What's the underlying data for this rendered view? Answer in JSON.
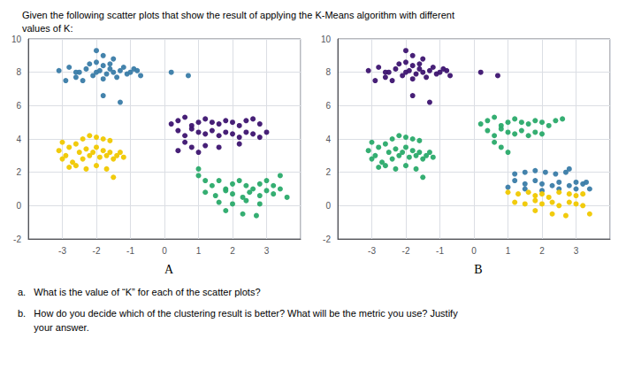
{
  "title": "Given the following scatter plots that show the result of applying the K-Means algorithm with different\nvalues of K:",
  "annotations": [
    "a.   What is the value of “K” for each of the scatter plots?",
    "b.   How do you decide which of the clustering result is better? What will be the metric you use? Justify\n      your answer."
  ],
  "chart_data": [
    {
      "type": "scatter",
      "subtitle": "A",
      "xlim": [
        -4,
        4
      ],
      "ylim": [
        -2,
        10
      ],
      "xticks": [
        -3,
        -2,
        -1,
        0,
        1,
        2,
        3
      ],
      "yticks": [
        -2,
        0,
        2,
        4,
        6,
        8,
        10
      ],
      "grid": true,
      "series": [
        {
          "color": "#3a7ca8",
          "values": [
            [
              -3.1,
              8.1
            ],
            [
              -2.9,
              7.5
            ],
            [
              -2.8,
              8.3
            ],
            [
              -2.6,
              7.7
            ],
            [
              -2.5,
              8.0
            ],
            [
              -2.4,
              7.5
            ],
            [
              -2.3,
              8.2
            ],
            [
              -2.2,
              8.5
            ],
            [
              -2.1,
              7.8
            ],
            [
              -2.0,
              8.0
            ],
            [
              -1.9,
              8.1
            ],
            [
              -1.8,
              7.6
            ],
            [
              -1.8,
              8.4
            ],
            [
              -1.7,
              7.9
            ],
            [
              -1.6,
              8.2
            ],
            [
              -1.5,
              8.0
            ],
            [
              -1.4,
              7.7
            ],
            [
              -1.3,
              8.1
            ],
            [
              -1.2,
              8.3
            ],
            [
              -1.1,
              7.9
            ],
            [
              -1.0,
              8.0
            ],
            [
              -0.9,
              8.2
            ],
            [
              -0.8,
              8.1
            ],
            [
              -0.7,
              7.8
            ],
            [
              -2.0,
              9.3
            ],
            [
              -1.8,
              9.0
            ],
            [
              -1.5,
              8.8
            ],
            [
              -2.6,
              8.0
            ],
            [
              -2.0,
              8.6
            ],
            [
              -1.6,
              8.5
            ],
            [
              0.2,
              8.0
            ],
            [
              0.7,
              7.8
            ],
            [
              -1.8,
              6.6
            ],
            [
              -1.3,
              6.2
            ]
          ]
        },
        {
          "color": "#3d1470",
          "values": [
            [
              0.2,
              4.9
            ],
            [
              0.4,
              5.1
            ],
            [
              0.6,
              5.3
            ],
            [
              0.8,
              4.8
            ],
            [
              1.0,
              5.0
            ],
            [
              1.2,
              5.2
            ],
            [
              1.4,
              5.0
            ],
            [
              1.6,
              4.9
            ],
            [
              1.8,
              5.1
            ],
            [
              2.0,
              5.0
            ],
            [
              2.2,
              4.8
            ],
            [
              2.4,
              5.1
            ],
            [
              2.6,
              5.2
            ],
            [
              2.8,
              4.9
            ],
            [
              0.4,
              4.5
            ],
            [
              0.6,
              4.2
            ],
            [
              0.8,
              4.6
            ],
            [
              1.0,
              4.4
            ],
            [
              1.2,
              4.3
            ],
            [
              1.4,
              4.5
            ],
            [
              1.6,
              4.2
            ],
            [
              1.8,
              4.4
            ],
            [
              2.0,
              4.3
            ],
            [
              2.2,
              4.1
            ],
            [
              2.4,
              4.4
            ],
            [
              2.6,
              4.3
            ],
            [
              2.8,
              4.1
            ],
            [
              3.0,
              4.4
            ],
            [
              0.6,
              3.8
            ],
            [
              0.8,
              3.5
            ],
            [
              1.2,
              3.6
            ],
            [
              1.6,
              3.5
            ],
            [
              2.2,
              3.7
            ],
            [
              1.0,
              3.2
            ],
            [
              0.4,
              3.3
            ]
          ]
        },
        {
          "color": "#f0c800",
          "values": [
            [
              -3.1,
              3.3
            ],
            [
              -3.0,
              2.8
            ],
            [
              -2.9,
              3.0
            ],
            [
              -2.8,
              3.5
            ],
            [
              -2.7,
              2.6
            ],
            [
              -2.6,
              3.7
            ],
            [
              -2.5,
              3.2
            ],
            [
              -2.4,
              2.8
            ],
            [
              -2.3,
              3.4
            ],
            [
              -2.2,
              3.0
            ],
            [
              -2.1,
              3.2
            ],
            [
              -2.0,
              3.5
            ],
            [
              -1.9,
              2.9
            ],
            [
              -1.8,
              3.3
            ],
            [
              -1.7,
              3.0
            ],
            [
              -1.6,
              3.2
            ],
            [
              -1.5,
              2.8
            ],
            [
              -1.4,
              3.0
            ],
            [
              -1.3,
              3.2
            ],
            [
              -1.2,
              2.9
            ],
            [
              -2.4,
              4.0
            ],
            [
              -2.2,
              4.2
            ],
            [
              -2.0,
              4.1
            ],
            [
              -1.8,
              4.0
            ],
            [
              -1.6,
              3.9
            ],
            [
              -2.6,
              2.4
            ],
            [
              -2.3,
              2.2
            ],
            [
              -2.0,
              2.4
            ],
            [
              -1.7,
              2.2
            ],
            [
              -3.0,
              3.8
            ],
            [
              -2.8,
              2.3
            ],
            [
              -1.5,
              1.7
            ]
          ]
        },
        {
          "color": "#2aaa6a",
          "values": [
            [
              1.0,
              1.8
            ],
            [
              1.2,
              1.5
            ],
            [
              1.4,
              1.2
            ],
            [
              1.6,
              1.5
            ],
            [
              1.8,
              1.0
            ],
            [
              2.0,
              1.3
            ],
            [
              2.2,
              1.5
            ],
            [
              2.4,
              1.2
            ],
            [
              2.6,
              1.0
            ],
            [
              2.8,
              1.3
            ],
            [
              3.0,
              1.5
            ],
            [
              3.2,
              1.2
            ],
            [
              3.4,
              1.0
            ],
            [
              1.2,
              0.8
            ],
            [
              1.5,
              0.6
            ],
            [
              1.8,
              0.9
            ],
            [
              2.0,
              0.7
            ],
            [
              2.3,
              0.5
            ],
            [
              2.5,
              0.8
            ],
            [
              2.8,
              0.6
            ],
            [
              3.0,
              0.9
            ],
            [
              3.2,
              0.7
            ],
            [
              1.6,
              0.2
            ],
            [
              2.0,
              0.1
            ],
            [
              2.4,
              0.3
            ],
            [
              2.8,
              0.1
            ],
            [
              1.8,
              -0.3
            ],
            [
              2.3,
              -0.5
            ],
            [
              2.7,
              -0.6
            ],
            [
              1.0,
              2.2
            ],
            [
              3.6,
              0.5
            ],
            [
              3.4,
              1.8
            ]
          ]
        }
      ]
    },
    {
      "type": "scatter",
      "subtitle": "B",
      "xlim": [
        -4,
        4
      ],
      "ylim": [
        -2,
        10
      ],
      "xticks": [
        -3,
        -2,
        -1,
        0,
        1,
        2,
        3
      ],
      "yticks": [
        -2,
        0,
        2,
        4,
        6,
        8,
        10
      ],
      "grid": true,
      "series": [
        {
          "color": "#3d1470",
          "values": [
            [
              -3.1,
              8.1
            ],
            [
              -2.9,
              7.5
            ],
            [
              -2.8,
              8.3
            ],
            [
              -2.6,
              7.7
            ],
            [
              -2.5,
              8.0
            ],
            [
              -2.4,
              7.5
            ],
            [
              -2.3,
              8.2
            ],
            [
              -2.2,
              8.5
            ],
            [
              -2.1,
              7.8
            ],
            [
              -2.0,
              8.0
            ],
            [
              -1.9,
              8.1
            ],
            [
              -1.8,
              7.6
            ],
            [
              -1.8,
              8.4
            ],
            [
              -1.7,
              7.9
            ],
            [
              -1.6,
              8.2
            ],
            [
              -1.5,
              8.0
            ],
            [
              -1.4,
              7.7
            ],
            [
              -1.3,
              8.1
            ],
            [
              -1.2,
              8.3
            ],
            [
              -1.1,
              7.9
            ],
            [
              -1.0,
              8.0
            ],
            [
              -0.9,
              8.2
            ],
            [
              -0.8,
              8.1
            ],
            [
              -0.7,
              7.8
            ],
            [
              -2.0,
              9.3
            ],
            [
              -1.8,
              9.0
            ],
            [
              -1.5,
              8.8
            ],
            [
              -2.6,
              8.0
            ],
            [
              -2.0,
              8.6
            ],
            [
              -1.6,
              8.5
            ],
            [
              0.2,
              8.0
            ],
            [
              0.7,
              7.8
            ],
            [
              -1.8,
              6.6
            ],
            [
              -1.3,
              6.2
            ]
          ]
        },
        {
          "color": "#2aaa6a",
          "values": [
            [
              -3.1,
              3.3
            ],
            [
              -3.0,
              2.8
            ],
            [
              -2.9,
              3.0
            ],
            [
              -2.8,
              3.5
            ],
            [
              -2.7,
              2.6
            ],
            [
              -2.6,
              3.7
            ],
            [
              -2.5,
              3.2
            ],
            [
              -2.4,
              2.8
            ],
            [
              -2.3,
              3.4
            ],
            [
              -2.2,
              3.0
            ],
            [
              -2.1,
              3.2
            ],
            [
              -2.0,
              3.5
            ],
            [
              -1.9,
              2.9
            ],
            [
              -1.8,
              3.3
            ],
            [
              -1.7,
              3.0
            ],
            [
              -1.6,
              3.2
            ],
            [
              -1.5,
              2.8
            ],
            [
              -1.4,
              3.0
            ],
            [
              -1.3,
              3.2
            ],
            [
              -1.2,
              2.9
            ],
            [
              -2.4,
              4.0
            ],
            [
              -2.2,
              4.2
            ],
            [
              -2.0,
              4.1
            ],
            [
              -1.8,
              4.0
            ],
            [
              -1.6,
              3.9
            ],
            [
              -2.6,
              2.4
            ],
            [
              -2.3,
              2.2
            ],
            [
              -2.0,
              2.4
            ],
            [
              -1.7,
              2.2
            ],
            [
              -3.0,
              3.8
            ],
            [
              -2.8,
              2.3
            ],
            [
              -1.5,
              1.7
            ],
            [
              0.2,
              4.9
            ],
            [
              0.4,
              5.1
            ],
            [
              0.6,
              5.3
            ],
            [
              0.8,
              4.8
            ],
            [
              1.0,
              5.0
            ],
            [
              1.2,
              5.2
            ],
            [
              1.4,
              5.0
            ],
            [
              1.6,
              4.9
            ],
            [
              1.8,
              5.1
            ],
            [
              2.0,
              5.0
            ],
            [
              2.2,
              4.8
            ],
            [
              2.4,
              5.1
            ],
            [
              2.6,
              5.2
            ],
            [
              0.4,
              4.5
            ],
            [
              0.6,
              4.2
            ],
            [
              0.8,
              4.6
            ],
            [
              1.0,
              4.4
            ],
            [
              1.2,
              4.3
            ],
            [
              1.4,
              4.5
            ],
            [
              1.6,
              4.2
            ],
            [
              1.8,
              4.4
            ],
            [
              2.0,
              4.3
            ],
            [
              0.6,
              3.8
            ],
            [
              0.8,
              3.5
            ],
            [
              1.0,
              3.2
            ]
          ]
        },
        {
          "color": "#3a7ca8",
          "values": [
            [
              1.2,
              1.9
            ],
            [
              1.5,
              2.0
            ],
            [
              1.8,
              2.1
            ],
            [
              2.1,
              2.0
            ],
            [
              2.4,
              1.9
            ],
            [
              2.7,
              2.0
            ],
            [
              2.8,
              2.2
            ],
            [
              1.2,
              1.5
            ],
            [
              1.5,
              1.3
            ],
            [
              1.8,
              1.5
            ],
            [
              2.0,
              1.3
            ],
            [
              2.3,
              1.2
            ],
            [
              2.5,
              1.4
            ],
            [
              2.8,
              1.2
            ],
            [
              3.0,
              1.4
            ],
            [
              3.2,
              1.3
            ],
            [
              1.0,
              1.1
            ],
            [
              1.5,
              1.0
            ],
            [
              2.0,
              0.9
            ],
            [
              2.5,
              1.0
            ],
            [
              3.0,
              1.0
            ],
            [
              3.3,
              1.4
            ],
            [
              3.4,
              1.0
            ]
          ]
        },
        {
          "color": "#f0c800",
          "values": [
            [
              1.0,
              0.8
            ],
            [
              1.3,
              0.7
            ],
            [
              1.6,
              0.8
            ],
            [
              1.8,
              0.6
            ],
            [
              2.0,
              0.7
            ],
            [
              2.2,
              0.5
            ],
            [
              2.5,
              0.8
            ],
            [
              2.8,
              0.7
            ],
            [
              3.0,
              0.6
            ],
            [
              3.2,
              0.7
            ],
            [
              1.2,
              0.2
            ],
            [
              1.5,
              0.1
            ],
            [
              1.8,
              0.3
            ],
            [
              2.0,
              0.1
            ],
            [
              2.3,
              0.2
            ],
            [
              2.5,
              0.0
            ],
            [
              2.8,
              0.2
            ],
            [
              3.0,
              0.1
            ],
            [
              1.8,
              -0.3
            ],
            [
              2.3,
              -0.5
            ],
            [
              2.7,
              -0.6
            ],
            [
              3.4,
              -0.5
            ],
            [
              3.2,
              0.0
            ]
          ]
        }
      ]
    }
  ]
}
